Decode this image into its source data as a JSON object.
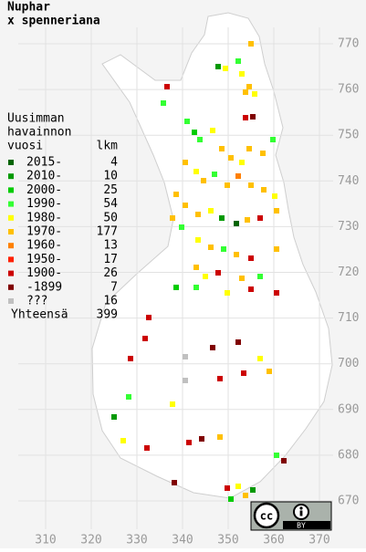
{
  "title": [
    "Nuphar",
    "x spenneriana"
  ],
  "legend": {
    "heading": [
      "Uusimman",
      "havainnon",
      "vuosi"
    ],
    "count_heading": "lkm",
    "rows": [
      {
        "label": "2015-",
        "count": 4,
        "color": "#006400"
      },
      {
        "label": "2010-",
        "count": 10,
        "color": "#009900"
      },
      {
        "label": "2000-",
        "count": 25,
        "color": "#00cc00"
      },
      {
        "label": "1990-",
        "count": 54,
        "color": "#33ff33"
      },
      {
        "label": "1980-",
        "count": 50,
        "color": "#ffff00"
      },
      {
        "label": "1970-",
        "count": 177,
        "color": "#ffc000"
      },
      {
        "label": "1960-",
        "count": 13,
        "color": "#ff8000"
      },
      {
        "label": "1950-",
        "count": 17,
        "color": "#ff2000"
      },
      {
        "label": "1900-",
        "count": 26,
        "color": "#cc0000"
      },
      {
        "label": "-1899",
        "count": 7,
        "color": "#800000"
      },
      {
        "label": "???",
        "count": 16,
        "color": "#c0c0c0"
      }
    ],
    "total_label": "Yhteensä",
    "total": 399
  },
  "y_axis_labels": [
    770,
    760,
    750,
    740,
    730,
    720,
    710,
    700,
    690,
    680,
    670
  ],
  "x_axis_labels": [
    310,
    320,
    330,
    340,
    350,
    360,
    370
  ],
  "license_badge": {
    "mark": "cc",
    "label": "BY"
  }
}
